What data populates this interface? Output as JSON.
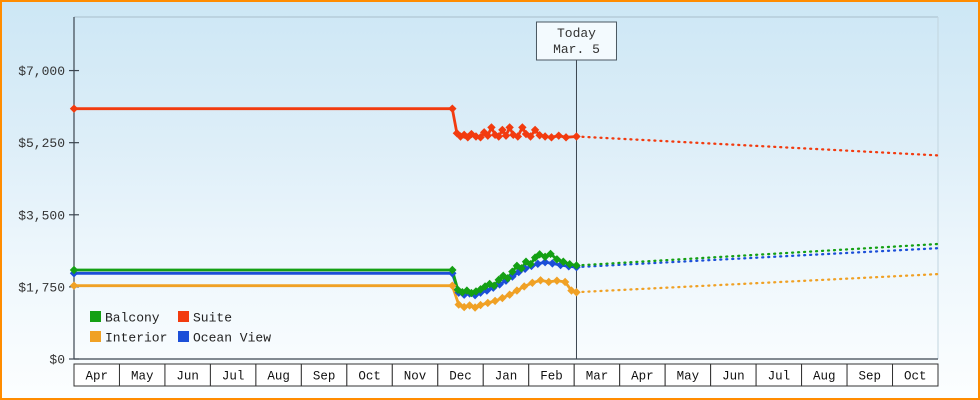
{
  "frame": {
    "border_color": "#ff8c00"
  },
  "chart_data": {
    "type": "line",
    "title": "",
    "today_marker": {
      "line1": "Today",
      "line2": "Mar. 5",
      "x": 11.05
    },
    "x_axis": {
      "range": [
        0,
        19
      ],
      "months": [
        "Apr",
        "May",
        "Jun",
        "Jul",
        "Aug",
        "Sep",
        "Oct",
        "Nov",
        "Dec",
        "Jan",
        "Feb",
        "Mar",
        "Apr",
        "May",
        "Jun",
        "Jul",
        "Aug",
        "Sep",
        "Oct"
      ]
    },
    "y_axis": {
      "max": 8300,
      "ticks": [
        0,
        1750,
        3500,
        5250,
        7000
      ],
      "labels": [
        "$0",
        "$1,750",
        "$3,500",
        "$5,250",
        "$7,000"
      ]
    },
    "legend": {
      "columns": 2,
      "order": [
        "Balcony",
        "Suite",
        "Interior",
        "Ocean View"
      ]
    },
    "series": [
      {
        "name": "Interior",
        "color": "#f0a125",
        "solid": [
          [
            0,
            1780
          ],
          [
            8.32,
            1780
          ],
          [
            8.46,
            1320
          ],
          [
            8.58,
            1260
          ],
          [
            8.7,
            1300
          ],
          [
            8.82,
            1250
          ],
          [
            8.94,
            1310
          ],
          [
            9.1,
            1360
          ],
          [
            9.26,
            1410
          ],
          [
            9.42,
            1480
          ],
          [
            9.58,
            1560
          ],
          [
            9.74,
            1660
          ],
          [
            9.9,
            1760
          ],
          [
            10.08,
            1850
          ],
          [
            10.26,
            1910
          ],
          [
            10.44,
            1870
          ],
          [
            10.62,
            1900
          ],
          [
            10.8,
            1870
          ],
          [
            10.94,
            1660
          ],
          [
            11.05,
            1620
          ]
        ],
        "projection": [
          [
            11.05,
            1620
          ],
          [
            19,
            2060
          ]
        ]
      },
      {
        "name": "Ocean View",
        "color": "#1c4fd8",
        "solid": [
          [
            0,
            2080
          ],
          [
            8.32,
            2080
          ],
          [
            8.46,
            1610
          ],
          [
            8.58,
            1560
          ],
          [
            8.7,
            1590
          ],
          [
            8.82,
            1550
          ],
          [
            8.94,
            1610
          ],
          [
            9.08,
            1660
          ],
          [
            9.22,
            1730
          ],
          [
            9.36,
            1810
          ],
          [
            9.5,
            1900
          ],
          [
            9.64,
            2000
          ],
          [
            9.78,
            2110
          ],
          [
            9.92,
            2190
          ],
          [
            10.06,
            2260
          ],
          [
            10.2,
            2310
          ],
          [
            10.36,
            2350
          ],
          [
            10.52,
            2320
          ],
          [
            10.7,
            2280
          ],
          [
            10.88,
            2250
          ],
          [
            11.05,
            2230
          ]
        ],
        "projection": [
          [
            11.05,
            2230
          ],
          [
            19,
            2690
          ]
        ]
      },
      {
        "name": "Balcony",
        "color": "#14a014",
        "solid": [
          [
            0,
            2160
          ],
          [
            8.32,
            2160
          ],
          [
            8.44,
            1680
          ],
          [
            8.54,
            1620
          ],
          [
            8.64,
            1660
          ],
          [
            8.74,
            1600
          ],
          [
            8.84,
            1640
          ],
          [
            8.94,
            1690
          ],
          [
            9.04,
            1760
          ],
          [
            9.14,
            1820
          ],
          [
            9.24,
            1780
          ],
          [
            9.34,
            1920
          ],
          [
            9.44,
            2020
          ],
          [
            9.54,
            1960
          ],
          [
            9.64,
            2120
          ],
          [
            9.74,
            2260
          ],
          [
            9.84,
            2200
          ],
          [
            9.94,
            2360
          ],
          [
            10.04,
            2300
          ],
          [
            10.14,
            2460
          ],
          [
            10.24,
            2540
          ],
          [
            10.36,
            2480
          ],
          [
            10.48,
            2550
          ],
          [
            10.62,
            2420
          ],
          [
            10.76,
            2360
          ],
          [
            10.9,
            2300
          ],
          [
            11.05,
            2270
          ]
        ],
        "projection": [
          [
            11.05,
            2270
          ],
          [
            19,
            2790
          ]
        ]
      },
      {
        "name": "Suite",
        "color": "#f23b0f",
        "solid": [
          [
            0,
            6075
          ],
          [
            8.32,
            6075
          ],
          [
            8.42,
            5480
          ],
          [
            8.5,
            5400
          ],
          [
            8.58,
            5440
          ],
          [
            8.66,
            5380
          ],
          [
            8.74,
            5460
          ],
          [
            8.84,
            5400
          ],
          [
            8.94,
            5380
          ],
          [
            9.02,
            5500
          ],
          [
            9.1,
            5420
          ],
          [
            9.18,
            5620
          ],
          [
            9.26,
            5440
          ],
          [
            9.34,
            5400
          ],
          [
            9.42,
            5560
          ],
          [
            9.5,
            5420
          ],
          [
            9.58,
            5620
          ],
          [
            9.66,
            5440
          ],
          [
            9.76,
            5400
          ],
          [
            9.86,
            5620
          ],
          [
            9.94,
            5460
          ],
          [
            10.04,
            5400
          ],
          [
            10.14,
            5560
          ],
          [
            10.24,
            5430
          ],
          [
            10.36,
            5400
          ],
          [
            10.5,
            5380
          ],
          [
            10.66,
            5420
          ],
          [
            10.82,
            5380
          ],
          [
            11.05,
            5400
          ]
        ],
        "projection": [
          [
            11.05,
            5400
          ],
          [
            19,
            4940
          ]
        ]
      }
    ]
  }
}
